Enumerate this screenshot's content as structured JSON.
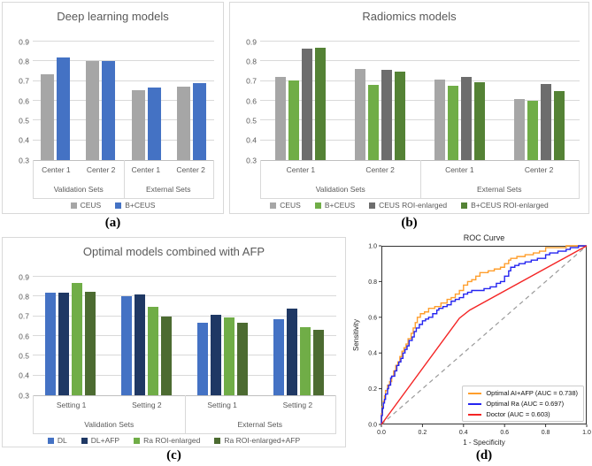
{
  "panel_labels": [
    "(a)",
    "(b)",
    "(c)",
    "(d)"
  ],
  "chart_data": [
    {
      "type": "bar",
      "panel": "a",
      "title": "Deep learning models",
      "ylim": [
        0.3,
        0.9
      ],
      "yticks": [
        0.3,
        0.4,
        0.5,
        0.6,
        0.7,
        0.8,
        0.9
      ],
      "grid": true,
      "legend_position": "bottom",
      "categories": [
        "Center 1",
        "Center 2",
        "Center 1",
        "Center 2"
      ],
      "group_labels": [
        "Validation Sets",
        "External Sets"
      ],
      "series": [
        {
          "name": "CEUS",
          "color": "#a6a6a6",
          "values": [
            0.735,
            0.8,
            0.655,
            0.67
          ]
        },
        {
          "name": "B+CEUS",
          "color": "#4472c4",
          "values": [
            0.82,
            0.803,
            0.667,
            0.688
          ]
        }
      ]
    },
    {
      "type": "bar",
      "panel": "b",
      "title": "Radiomics models",
      "ylim": [
        0.3,
        0.9
      ],
      "yticks": [
        0.3,
        0.4,
        0.5,
        0.6,
        0.7,
        0.8,
        0.9
      ],
      "grid": true,
      "legend_position": "bottom",
      "categories": [
        "Center 1",
        "Center 2",
        "Center 1",
        "Center 2"
      ],
      "group_labels": [
        "Validation Sets",
        "External Sets"
      ],
      "series": [
        {
          "name": "CEUS",
          "color": "#a6a6a6",
          "values": [
            0.72,
            0.763,
            0.708,
            0.61
          ]
        },
        {
          "name": "B+CEUS",
          "color": "#70ad47",
          "values": [
            0.703,
            0.682,
            0.678,
            0.6
          ]
        },
        {
          "name": "CEUS ROI-enlarged",
          "color": "#6d6d6d",
          "values": [
            0.863,
            0.755,
            0.72,
            0.685
          ]
        },
        {
          "name": "B+CEUS ROI-enlarged",
          "color": "#548235",
          "values": [
            0.868,
            0.748,
            0.695,
            0.648
          ]
        }
      ]
    },
    {
      "type": "bar",
      "panel": "c",
      "title": "Optimal models combined with AFP",
      "ylim": [
        0.3,
        0.9
      ],
      "yticks": [
        0.3,
        0.4,
        0.5,
        0.6,
        0.7,
        0.8,
        0.9
      ],
      "grid": true,
      "legend_position": "bottom",
      "categories": [
        "Setting 1",
        "Setting 2",
        "Setting 1",
        "Setting 2"
      ],
      "group_labels": [
        "Validation Sets",
        "External Sets"
      ],
      "series": [
        {
          "name": "DL",
          "color": "#4472c4",
          "values": [
            0.818,
            0.803,
            0.665,
            0.687
          ]
        },
        {
          "name": "DL+AFP",
          "color": "#1f3864",
          "values": [
            0.818,
            0.81,
            0.708,
            0.737
          ]
        },
        {
          "name": "Ra ROI-enlarged",
          "color": "#70ad47",
          "values": [
            0.868,
            0.748,
            0.692,
            0.645
          ]
        },
        {
          "name": "Ra ROI-enlarged+AFP",
          "color": "#4c6b31",
          "values": [
            0.822,
            0.697,
            0.665,
            0.633
          ]
        }
      ]
    },
    {
      "type": "line",
      "panel": "d",
      "title": "ROC Curve",
      "xlabel": "1 - Specificity",
      "ylabel": "Sensitivity",
      "xlim": [
        0,
        1
      ],
      "ylim": [
        0,
        1
      ],
      "xticks": [
        0.0,
        0.2,
        0.4,
        0.6,
        0.8,
        1.0
      ],
      "yticks": [
        0.0,
        0.2,
        0.4,
        0.6,
        0.8,
        1.0
      ],
      "legend_position": "lower right",
      "diagonal": {
        "color": "#9a9a9a",
        "dashed": true
      },
      "series": [
        {
          "name": "Optimal AI+AFP (AUC = 0.738)",
          "color": "#ff9e2c",
          "step": true,
          "points": [
            [
              0,
              0
            ],
            [
              0.005,
              0.06
            ],
            [
              0.01,
              0.1
            ],
            [
              0.015,
              0.13
            ],
            [
              0.02,
              0.16
            ],
            [
              0.03,
              0.19
            ],
            [
              0.04,
              0.22
            ],
            [
              0.05,
              0.24
            ],
            [
              0.06,
              0.27
            ],
            [
              0.07,
              0.3
            ],
            [
              0.08,
              0.33
            ],
            [
              0.09,
              0.35
            ],
            [
              0.1,
              0.38
            ],
            [
              0.11,
              0.41
            ],
            [
              0.12,
              0.43
            ],
            [
              0.13,
              0.45
            ],
            [
              0.145,
              0.48
            ],
            [
              0.155,
              0.51
            ],
            [
              0.165,
              0.54
            ],
            [
              0.175,
              0.57
            ],
            [
              0.19,
              0.6
            ],
            [
              0.21,
              0.62
            ],
            [
              0.23,
              0.63
            ],
            [
              0.26,
              0.65
            ],
            [
              0.29,
              0.66
            ],
            [
              0.32,
              0.68
            ],
            [
              0.34,
              0.7
            ],
            [
              0.36,
              0.71
            ],
            [
              0.38,
              0.73
            ],
            [
              0.4,
              0.75
            ],
            [
              0.42,
              0.78
            ],
            [
              0.44,
              0.8
            ],
            [
              0.46,
              0.81
            ],
            [
              0.48,
              0.83
            ],
            [
              0.52,
              0.85
            ],
            [
              0.55,
              0.86
            ],
            [
              0.58,
              0.87
            ],
            [
              0.6,
              0.88
            ],
            [
              0.62,
              0.9
            ],
            [
              0.63,
              0.92
            ],
            [
              0.66,
              0.93
            ],
            [
              0.7,
              0.94
            ],
            [
              0.74,
              0.95
            ],
            [
              0.77,
              0.96
            ],
            [
              0.8,
              0.97
            ],
            [
              0.82,
              0.99
            ],
            [
              0.9,
              0.99
            ],
            [
              0.93,
              1.0
            ],
            [
              1.0,
              1.0
            ]
          ]
        },
        {
          "name": "Optimal Ra (AUC = 0.697)",
          "color": "#2525f0",
          "step": true,
          "points": [
            [
              0,
              0
            ],
            [
              0.005,
              0.05
            ],
            [
              0.01,
              0.09
            ],
            [
              0.015,
              0.12
            ],
            [
              0.02,
              0.14
            ],
            [
              0.03,
              0.17
            ],
            [
              0.035,
              0.2
            ],
            [
              0.045,
              0.22
            ],
            [
              0.05,
              0.26
            ],
            [
              0.065,
              0.27
            ],
            [
              0.075,
              0.3
            ],
            [
              0.085,
              0.33
            ],
            [
              0.095,
              0.35
            ],
            [
              0.105,
              0.37
            ],
            [
              0.115,
              0.4
            ],
            [
              0.125,
              0.42
            ],
            [
              0.135,
              0.44
            ],
            [
              0.15,
              0.47
            ],
            [
              0.16,
              0.49
            ],
            [
              0.17,
              0.52
            ],
            [
              0.185,
              0.54
            ],
            [
              0.2,
              0.56
            ],
            [
              0.215,
              0.58
            ],
            [
              0.23,
              0.59
            ],
            [
              0.25,
              0.6
            ],
            [
              0.27,
              0.62
            ],
            [
              0.28,
              0.64
            ],
            [
              0.3,
              0.65
            ],
            [
              0.32,
              0.66
            ],
            [
              0.34,
              0.67
            ],
            [
              0.36,
              0.69
            ],
            [
              0.38,
              0.7
            ],
            [
              0.4,
              0.71
            ],
            [
              0.42,
              0.73
            ],
            [
              0.44,
              0.74
            ],
            [
              0.46,
              0.75
            ],
            [
              0.5,
              0.75
            ],
            [
              0.53,
              0.76
            ],
            [
              0.56,
              0.77
            ],
            [
              0.58,
              0.79
            ],
            [
              0.6,
              0.8
            ],
            [
              0.62,
              0.83
            ],
            [
              0.63,
              0.86
            ],
            [
              0.65,
              0.88
            ],
            [
              0.67,
              0.89
            ],
            [
              0.7,
              0.9
            ],
            [
              0.73,
              0.91
            ],
            [
              0.76,
              0.92
            ],
            [
              0.8,
              0.93
            ],
            [
              0.82,
              0.95
            ],
            [
              0.86,
              0.96
            ],
            [
              0.9,
              0.97
            ],
            [
              0.92,
              0.98
            ],
            [
              0.96,
              0.99
            ],
            [
              1.0,
              1.0
            ]
          ]
        },
        {
          "name": "Doctor (AUC = 0.603)",
          "color": "#f42525",
          "step": false,
          "points": [
            [
              0,
              0
            ],
            [
              0.38,
              0.595
            ],
            [
              0.43,
              0.64
            ],
            [
              1.0,
              1.0
            ]
          ]
        }
      ]
    }
  ]
}
